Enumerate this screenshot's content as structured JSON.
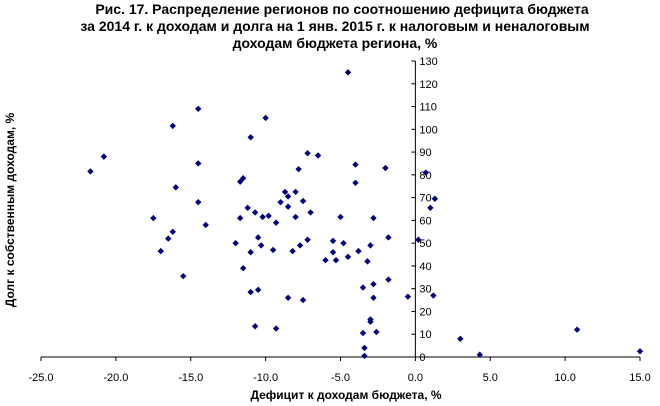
{
  "chart_data": {
    "type": "scatter",
    "title_lines": [
      "Рис. 17. Распределение регионов по соотношению дефицита бюджета",
      "за 2014 г. к доходам и долга на 1 янв. 2015 г. к налоговым и неналоговым",
      "доходам бюджета региона, %"
    ],
    "xlabel": "Дефицит к доходам бюджета, %",
    "ylabel": "Долг к собственным доходам, %",
    "xlim": [
      -25,
      15
    ],
    "ylim": [
      0,
      130
    ],
    "x_ticks": [
      "-25.0",
      "-20.0",
      "-15.0",
      "-10.0",
      "-5.0",
      "0.0",
      "5.0",
      "10.0",
      "15.0"
    ],
    "y_ticks": [
      "0",
      "10",
      "20",
      "30",
      "40",
      "50",
      "60",
      "70",
      "80",
      "90",
      "100",
      "110",
      "120",
      "130"
    ],
    "grid": false,
    "legend": "none",
    "marker_color": "#000080",
    "points": [
      [
        -21.7,
        81.5
      ],
      [
        -20.8,
        88.0
      ],
      [
        -17.5,
        61.0
      ],
      [
        -17.0,
        46.5
      ],
      [
        -16.5,
        52.0
      ],
      [
        -16.2,
        55.0
      ],
      [
        -16.0,
        74.5
      ],
      [
        -16.2,
        101.5
      ],
      [
        -15.5,
        35.5
      ],
      [
        -14.5,
        109.0
      ],
      [
        -14.5,
        85.0
      ],
      [
        -14.5,
        68.0
      ],
      [
        -14.0,
        58.0
      ],
      [
        -12.0,
        50.0
      ],
      [
        -11.7,
        61.0
      ],
      [
        -11.7,
        77.0
      ],
      [
        -11.5,
        78.5
      ],
      [
        -11.5,
        39.0
      ],
      [
        -11.2,
        65.5
      ],
      [
        -11.0,
        96.5
      ],
      [
        -11.0,
        46.0
      ],
      [
        -11.0,
        28.5
      ],
      [
        -10.7,
        63.5
      ],
      [
        -10.5,
        52.5
      ],
      [
        -10.5,
        29.5
      ],
      [
        -10.7,
        13.5
      ],
      [
        -10.3,
        49.0
      ],
      [
        -10.2,
        61.5
      ],
      [
        -10.0,
        105.0
      ],
      [
        -9.8,
        62.0
      ],
      [
        -9.5,
        47.0
      ],
      [
        -9.3,
        59.0
      ],
      [
        -9.3,
        12.5
      ],
      [
        -9.0,
        68.0
      ],
      [
        -8.7,
        72.5
      ],
      [
        -8.5,
        66.0
      ],
      [
        -8.5,
        70.5
      ],
      [
        -8.5,
        26.0
      ],
      [
        -8.2,
        46.5
      ],
      [
        -8.0,
        61.5
      ],
      [
        -8.0,
        72.5
      ],
      [
        -7.8,
        82.5
      ],
      [
        -7.7,
        49.0
      ],
      [
        -7.5,
        25.0
      ],
      [
        -7.2,
        89.5
      ],
      [
        -7.2,
        51.5
      ],
      [
        -7.0,
        63.5
      ],
      [
        -7.5,
        68.5
      ],
      [
        -6.5,
        88.5
      ],
      [
        -6.0,
        42.5
      ],
      [
        -5.5,
        51.0
      ],
      [
        -5.5,
        46.0
      ],
      [
        -5.3,
        42.5
      ],
      [
        -5.0,
        61.5
      ],
      [
        -4.8,
        50.0
      ],
      [
        -4.5,
        125.0
      ],
      [
        -4.5,
        44.0
      ],
      [
        -4.0,
        84.5
      ],
      [
        -4.0,
        76.5
      ],
      [
        -3.8,
        46.5
      ],
      [
        -3.5,
        30.5
      ],
      [
        -3.5,
        10.5
      ],
      [
        -3.4,
        4.0
      ],
      [
        -3.4,
        0.5
      ],
      [
        -3.2,
        42.0
      ],
      [
        -3.0,
        49.0
      ],
      [
        -3.0,
        16.5
      ],
      [
        -3.0,
        15.5
      ],
      [
        -2.8,
        61.0
      ],
      [
        -2.8,
        32.0
      ],
      [
        -2.8,
        26.0
      ],
      [
        -2.6,
        11.0
      ],
      [
        -2.0,
        83.0
      ],
      [
        -1.8,
        52.5
      ],
      [
        -1.8,
        34.0
      ],
      [
        -0.5,
        26.5
      ],
      [
        0.2,
        51.5
      ],
      [
        0.7,
        81.0
      ],
      [
        1.0,
        65.5
      ],
      [
        1.2,
        27.0
      ],
      [
        1.3,
        69.5
      ],
      [
        3.0,
        8.0
      ],
      [
        4.3,
        1.0
      ],
      [
        10.8,
        12.0
      ],
      [
        15.0,
        2.5
      ]
    ]
  }
}
